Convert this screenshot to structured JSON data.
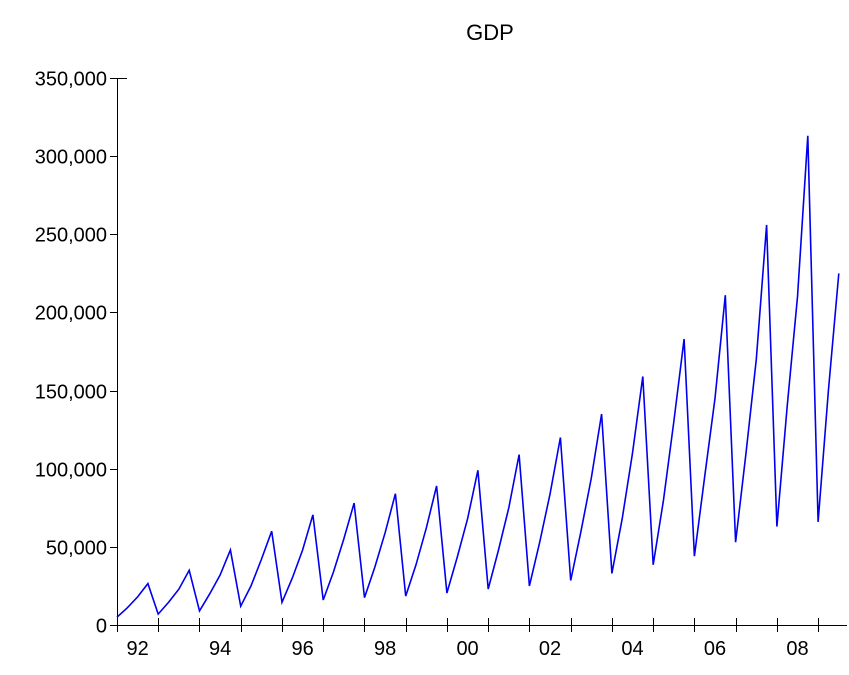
{
  "chart_data": {
    "type": "line",
    "title": "GDP",
    "xlabel": "",
    "ylabel": "",
    "frequency": "quarterly",
    "x_start": "1992Q1",
    "x_end": "2009Q3",
    "xlim": [
      1992.0,
      2009.7
    ],
    "ylim": [
      0,
      350000
    ],
    "y_ticks": [
      0,
      50000,
      100000,
      150000,
      200000,
      250000,
      300000,
      350000
    ],
    "y_tick_labels": [
      "0",
      "50,000",
      "100,000",
      "150,000",
      "200,000",
      "250,000",
      "300,000",
      "350,000"
    ],
    "x_tick_labels": [
      "92",
      "94",
      "96",
      "98",
      "00",
      "02",
      "04",
      "06",
      "08"
    ],
    "grid": false,
    "legend": "none",
    "line_color": "#0000ee",
    "series": [
      {
        "values": [
          5000,
          11000,
          18000,
          26500,
          7000,
          14500,
          23000,
          35000,
          9000,
          20000,
          32000,
          48000,
          12000,
          25000,
          42000,
          60000,
          14500,
          30000,
          48000,
          70500,
          16000,
          34000,
          55000,
          78000,
          17500,
          37000,
          59000,
          84000,
          18500,
          38500,
          62000,
          89000,
          20500,
          43500,
          68000,
          99000,
          23000,
          48000,
          75000,
          109000,
          25000,
          53000,
          84000,
          120000,
          28500,
          60000,
          94000,
          135000,
          33000,
          68000,
          110000,
          159000,
          38500,
          80000,
          130000,
          183000,
          44000,
          95000,
          145000,
          211000,
          53000,
          110000,
          170000,
          256000,
          63000,
          140000,
          210000,
          313000,
          66000,
          150000,
          225000
        ]
      }
    ]
  }
}
